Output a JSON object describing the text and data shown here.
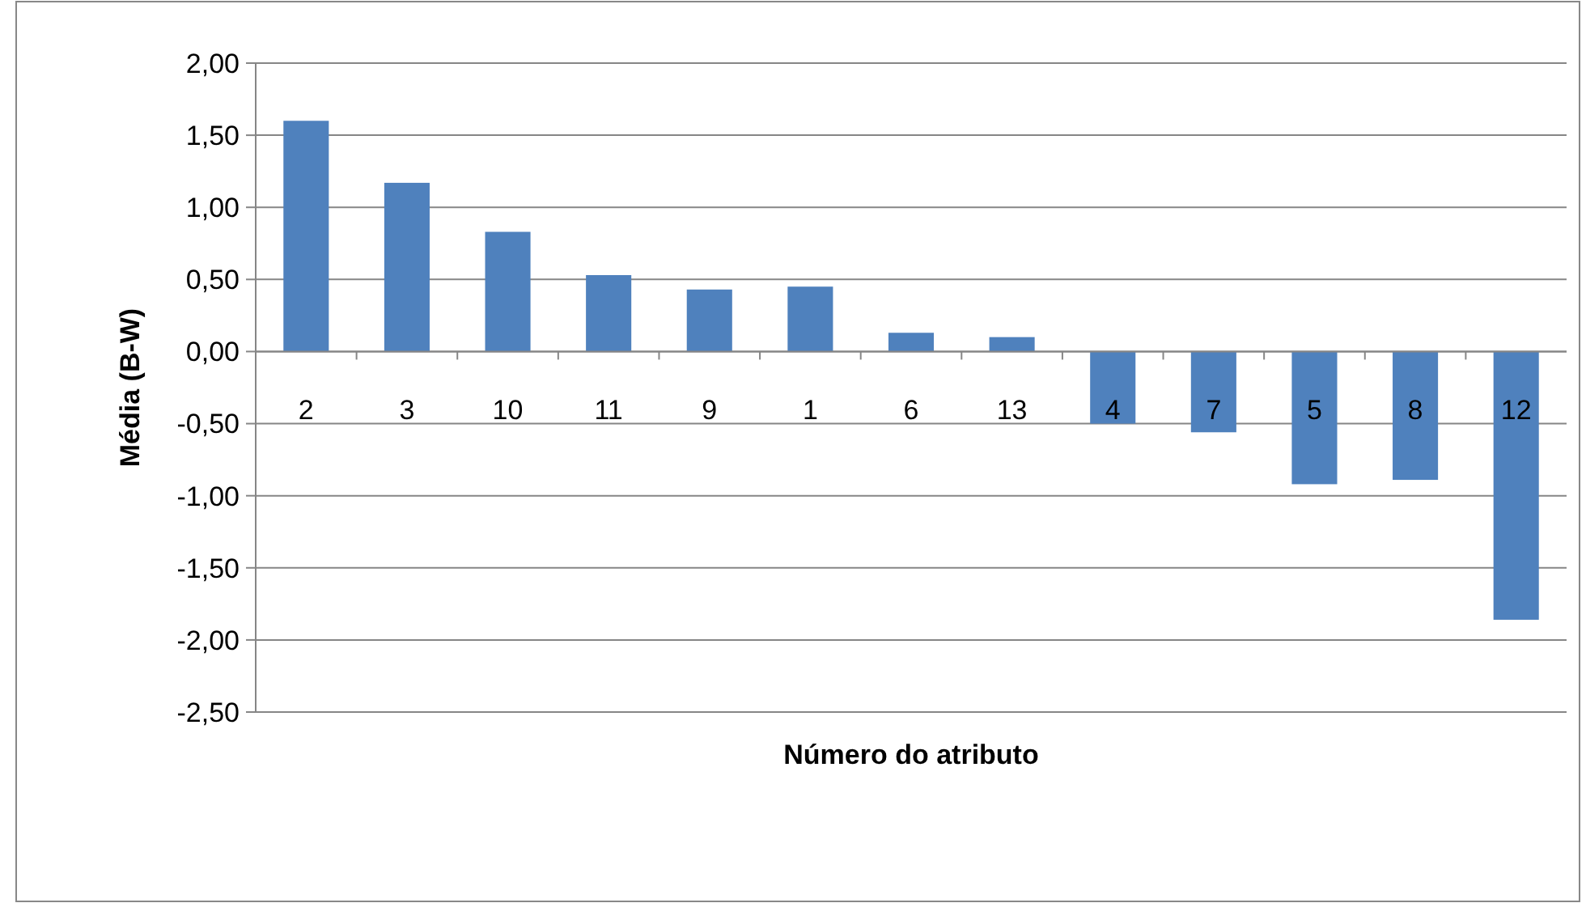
{
  "chart_data": {
    "type": "bar",
    "xlabel": "Número do atributo",
    "ylabel": "Média (B-W)",
    "categories": [
      "2",
      "3",
      "10",
      "11",
      "9",
      "1",
      "6",
      "13",
      "4",
      "7",
      "5",
      "8",
      "12"
    ],
    "values": [
      1.6,
      1.17,
      0.83,
      0.53,
      0.43,
      0.45,
      0.13,
      0.1,
      -0.5,
      -0.56,
      -0.92,
      -0.89,
      -1.86
    ],
    "color": "#4f81bd",
    "ylim": [
      -2.5,
      2
    ],
    "yticks": [
      {
        "value": 2,
        "label": "2,00"
      },
      {
        "value": 1.5,
        "label": "1,50"
      },
      {
        "value": 1,
        "label": "1,00"
      },
      {
        "value": 0.5,
        "label": "0,50"
      },
      {
        "value": 0,
        "label": "0,00"
      },
      {
        "value": -0.5,
        "label": "-0,50"
      },
      {
        "value": -1,
        "label": "-1,00"
      },
      {
        "value": -1.5,
        "label": "-1,50"
      },
      {
        "value": -2,
        "label": "-2,00"
      },
      {
        "value": -2.5,
        "label": "-2,50"
      }
    ],
    "grid": "y"
  }
}
